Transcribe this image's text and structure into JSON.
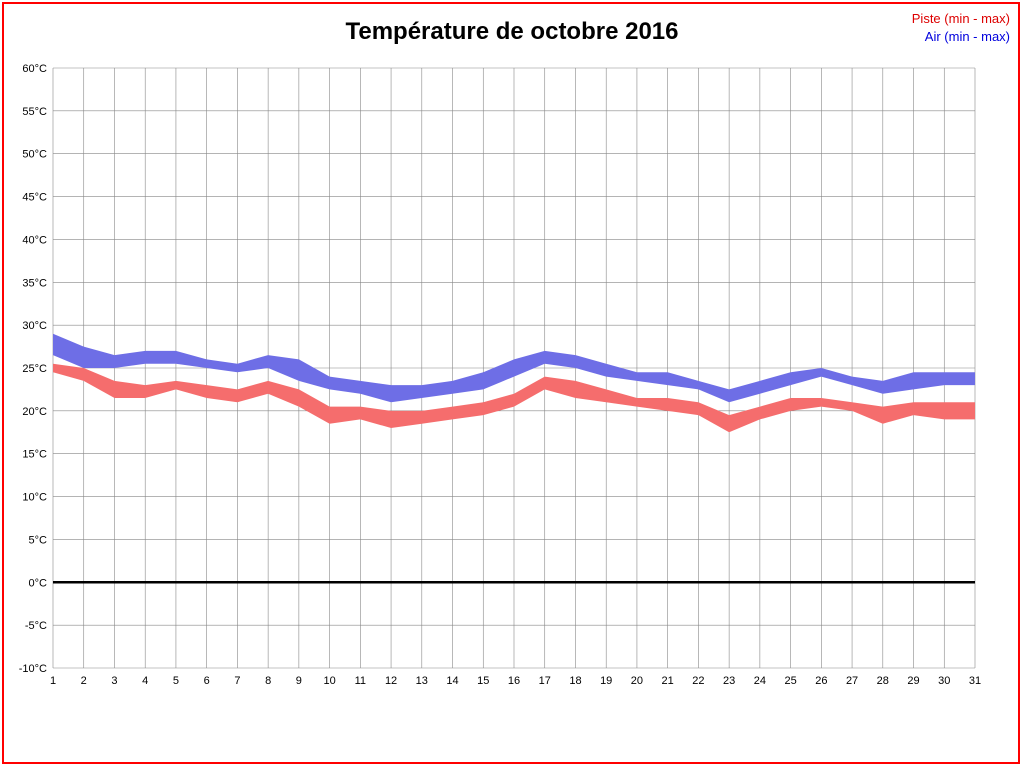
{
  "page": {
    "title": "Température de octobre 2016",
    "frame_color": "#ff0000"
  },
  "legend": {
    "piste_label": "Piste (min - max)",
    "air_label": "Air (min - max)",
    "piste_color": "#dd0000",
    "air_color": "#0000dd"
  },
  "chart_data": {
    "type": "area",
    "title": "Température de octobre 2016",
    "xlabel": "",
    "ylabel": "",
    "x": [
      1,
      2,
      3,
      4,
      5,
      6,
      7,
      8,
      9,
      10,
      11,
      12,
      13,
      14,
      15,
      16,
      17,
      18,
      19,
      20,
      21,
      22,
      23,
      24,
      25,
      26,
      27,
      28,
      29,
      30,
      31
    ],
    "x_tick_labels": [
      "1",
      "2",
      "3",
      "4",
      "5",
      "6",
      "7",
      "8",
      "9",
      "10",
      "11",
      "12",
      "13",
      "14",
      "15",
      "16",
      "17",
      "18",
      "19",
      "20",
      "21",
      "22",
      "23",
      "24",
      "25",
      "26",
      "27",
      "28",
      "29",
      "30",
      "31"
    ],
    "ylim": [
      -10,
      60
    ],
    "ytick_step": 5,
    "y_tick_labels": [
      "60°C",
      "55°C",
      "50°C",
      "45°C",
      "40°C",
      "35°C",
      "30°C",
      "25°C",
      "20°C",
      "15°C",
      "10°C",
      "5°C",
      "0°C",
      "-5°C",
      "-10°C"
    ],
    "grid": true,
    "zero_line": true,
    "zero_line_color": "#000000",
    "grid_color": "#888888",
    "legend_position": "top-right",
    "series": [
      {
        "name": "Air (min - max)",
        "color": "#6e6ee6",
        "max": [
          29,
          27.5,
          26.5,
          27,
          27,
          26,
          25.5,
          26.5,
          26,
          24,
          23.5,
          23,
          23,
          23.5,
          24.5,
          26,
          27,
          26.5,
          25.5,
          24.5,
          24.5,
          23.5,
          22.5,
          23.5,
          24.5,
          25,
          24,
          23.5,
          24.5,
          24.5,
          24.5
        ],
        "min": [
          26.5,
          25,
          25,
          25.5,
          25.5,
          25,
          24.5,
          25,
          23.5,
          22.5,
          22,
          21,
          21.5,
          22,
          22.5,
          24,
          25.5,
          25,
          24,
          23.5,
          23,
          22.5,
          21,
          22,
          23,
          24,
          23,
          22,
          22.5,
          23,
          23
        ]
      },
      {
        "name": "Piste (min - max)",
        "color": "#f56d6d",
        "max": [
          25.5,
          25,
          23.5,
          23,
          23.5,
          23,
          22.5,
          23.5,
          22.5,
          20.5,
          20.5,
          20,
          20,
          20.5,
          21,
          22,
          24,
          23.5,
          22.5,
          21.5,
          21.5,
          21,
          19.5,
          20.5,
          21.5,
          21.5,
          21,
          20.5,
          21,
          21,
          21
        ],
        "min": [
          24.5,
          23.5,
          21.5,
          21.5,
          22.5,
          21.5,
          21,
          22,
          20.5,
          18.5,
          19,
          18,
          18.5,
          19,
          19.5,
          20.5,
          22.5,
          21.5,
          21,
          20.5,
          20,
          19.5,
          17.5,
          19,
          20,
          20.5,
          20,
          18.5,
          19.5,
          19,
          19
        ]
      }
    ]
  }
}
